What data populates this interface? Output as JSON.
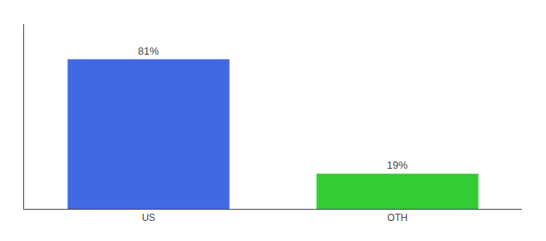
{
  "chart_data": {
    "type": "bar",
    "categories": [
      "US",
      "OTH"
    ],
    "values": [
      81,
      19
    ],
    "value_labels": [
      "81%",
      "19%"
    ],
    "colors": [
      "#4169e1",
      "#33cc33"
    ],
    "ylim": [
      0,
      100
    ],
    "tick_labels": "x",
    "grid": false,
    "data_labels": true
  }
}
